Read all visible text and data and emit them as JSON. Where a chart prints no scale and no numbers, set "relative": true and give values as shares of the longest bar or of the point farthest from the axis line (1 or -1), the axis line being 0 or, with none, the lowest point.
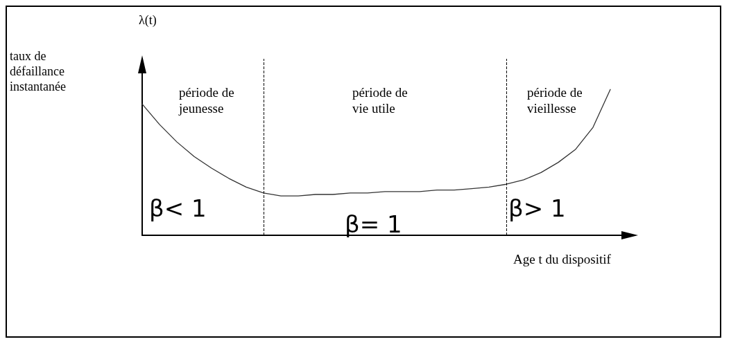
{
  "chart_data": {
    "type": "line",
    "relative": true,
    "xlabel": "Age t du dispositif",
    "categories": [
      null,
      null,
      null,
      null,
      null,
      null,
      null,
      null,
      null,
      null,
      null,
      null,
      null,
      null,
      null,
      null,
      null,
      null,
      null,
      null,
      null,
      null,
      null,
      null,
      null,
      null,
      null,
      null,
      null
    ],
    "series": [
      {
        "color": "#333333",
        "values": [
          0.9,
          0.76,
          0.64,
          0.54,
          0.46,
          0.39,
          0.33,
          0.29,
          0.27,
          0.27,
          0.28,
          0.28,
          0.29,
          0.29,
          0.3,
          0.3,
          0.3,
          0.31,
          0.31,
          0.32,
          0.33,
          0.35,
          0.38,
          0.43,
          0.5,
          0.59,
          0.74,
          1,
          null
        ]
      }
    ],
    "annotations": [
      "taux de défaillance instantanée",
      "λ(t)",
      "période de\njeunesse",
      "période de\nvie utile",
      "période de\nvieillesse",
      "β< 1",
      "β= 1",
      "β> 1"
    ],
    "grid": false,
    "marker": "none",
    "line_style": "solid"
  }
}
